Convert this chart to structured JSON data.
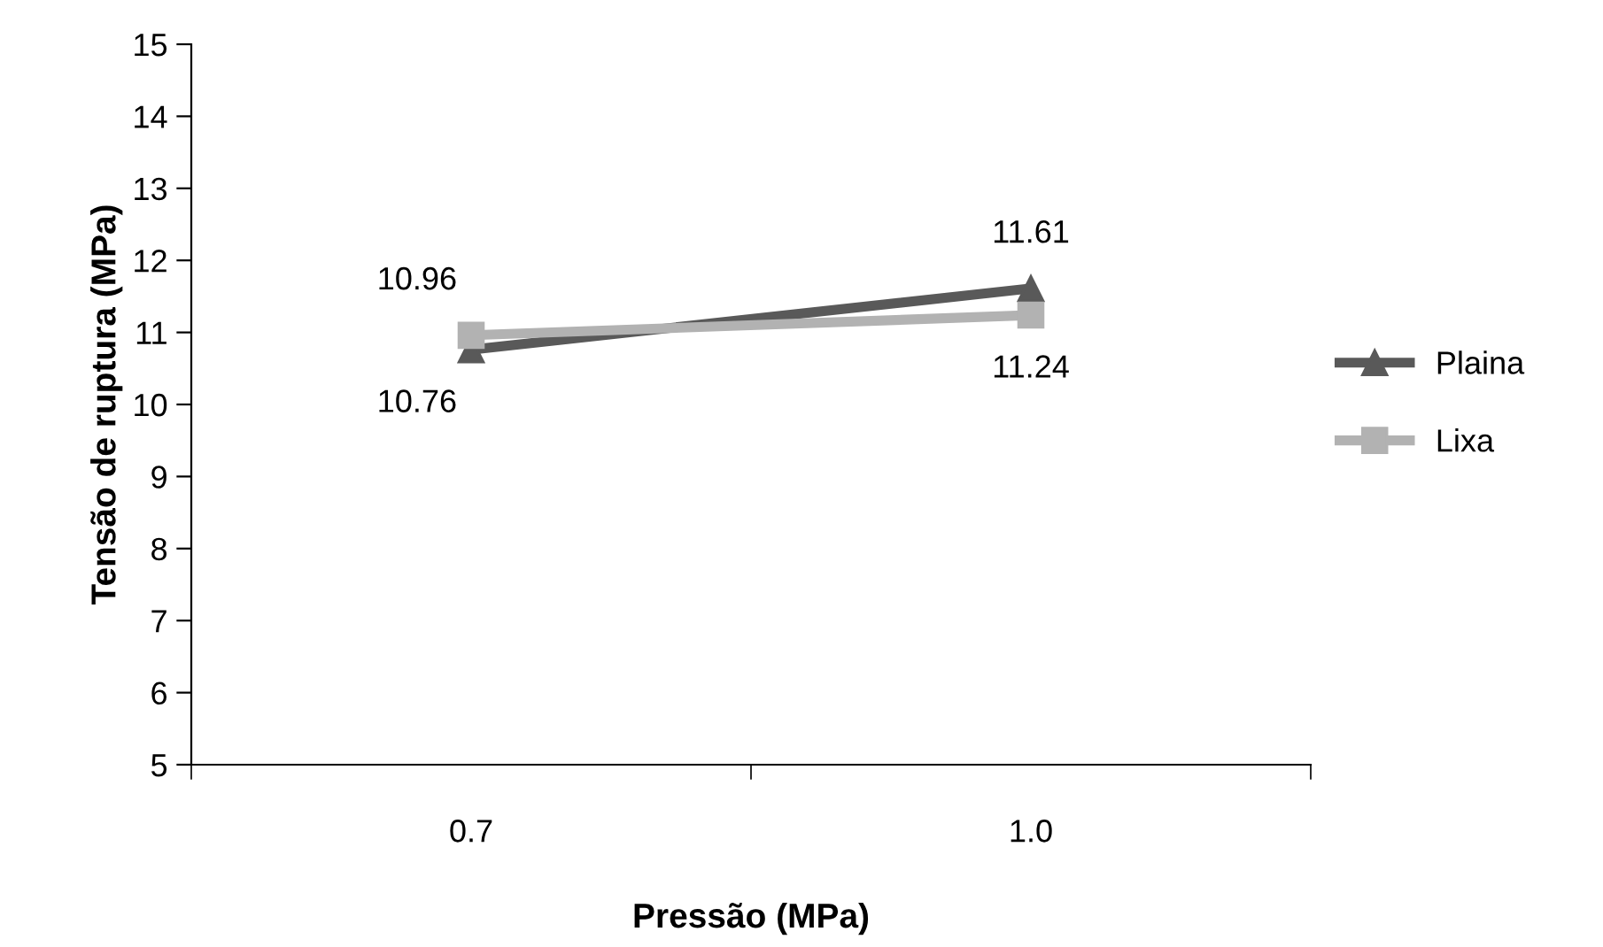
{
  "chart_data": {
    "type": "line",
    "xlabel": "Pressão (MPa)",
    "ylabel": "Tensão de ruptura (MPa)",
    "categories": [
      "0.7",
      "1.0"
    ],
    "series": [
      {
        "name": "Plaina",
        "color": "#595959",
        "marker": "triangle",
        "values": [
          10.76,
          11.61
        ]
      },
      {
        "name": "Lixa",
        "color": "#b2b2b2",
        "marker": "square",
        "values": [
          10.96,
          11.24
        ]
      }
    ],
    "ylim": [
      5,
      15
    ],
    "yticks": [
      5,
      6,
      7,
      8,
      9,
      10,
      11,
      12,
      13,
      14,
      15
    ],
    "grid": false,
    "legend": "right",
    "data_labels": true
  }
}
